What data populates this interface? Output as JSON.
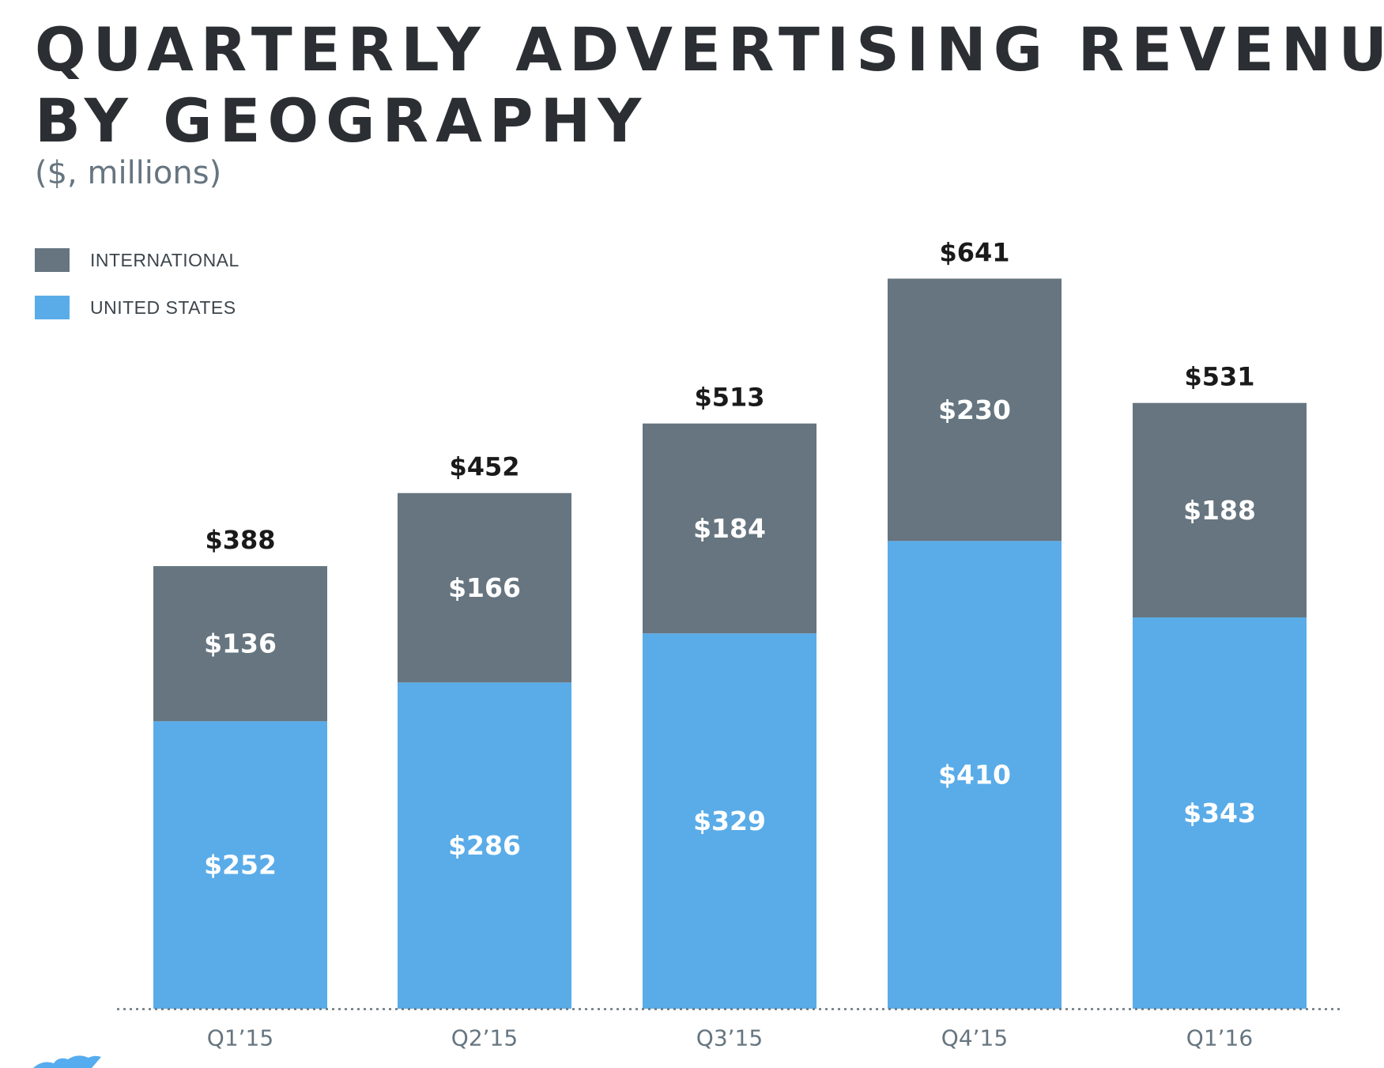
{
  "title_line1": "QUARTERLY ADVERTISING REVENUE",
  "title_line2": "BY GEOGRAPHY",
  "subtitle": "($, millions)",
  "colors": {
    "international": "#66757f",
    "united_states": "#5aace8",
    "title": "#2b2f33",
    "total_label": "#1a1a1a"
  },
  "legend": [
    {
      "label": "INTERNATIONAL",
      "color": "#66757f"
    },
    {
      "label": "UNITED STATES",
      "color": "#5aace8"
    }
  ],
  "logo": {
    "icon": "bird-logo-icon",
    "color": "#55acee"
  },
  "chart_data": {
    "type": "bar",
    "stacked": true,
    "categories": [
      "Q1’15",
      "Q2’15",
      "Q3’15",
      "Q4’15",
      "Q1’16"
    ],
    "series": [
      {
        "name": "UNITED STATES",
        "values": [
          252,
          286,
          329,
          410,
          343
        ],
        "labels": [
          "$252",
          "$286",
          "$329",
          "$410",
          "$343"
        ],
        "color": "#5aace8"
      },
      {
        "name": "INTERNATIONAL",
        "values": [
          136,
          166,
          184,
          230,
          188
        ],
        "labels": [
          "$136",
          "$166",
          "$184",
          "$230",
          "$188"
        ],
        "color": "#66757f"
      }
    ],
    "totals": [
      388,
      452,
      513,
      641,
      531
    ],
    "total_labels": [
      "$388",
      "$452",
      "$513",
      "$641",
      "$531"
    ],
    "title": "QUARTERLY ADVERTISING REVENUE BY GEOGRAPHY",
    "xlabel": "",
    "ylabel": "",
    "ylim": [
      0,
      641
    ],
    "grid": false,
    "legend_position": "top-left"
  }
}
